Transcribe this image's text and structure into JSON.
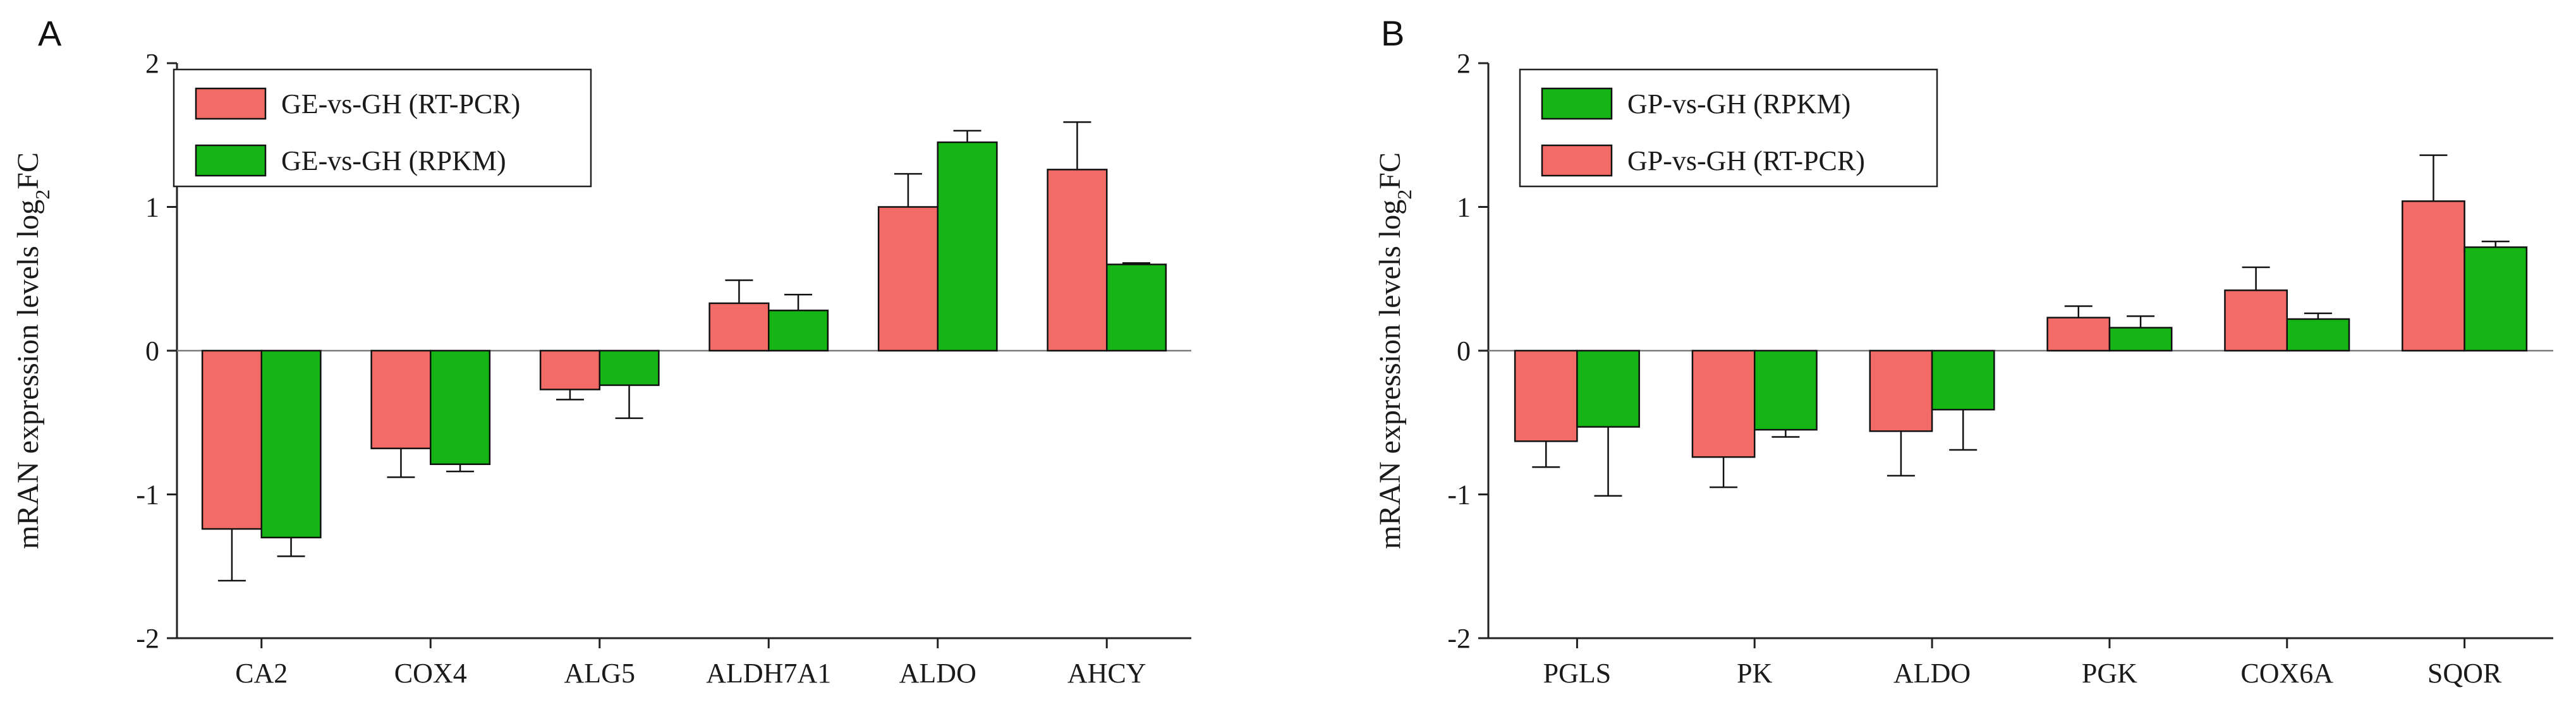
{
  "figure": {
    "colors": {
      "rt_pcr": "#f26b67",
      "rpkm": "#14b514",
      "axis": "#222222"
    }
  },
  "chart_data": [
    {
      "panel": "A",
      "type": "bar",
      "ylabel": "mRAN expression levels  log",
      "ylabel_sub": "2",
      "ylabel_suffix": "FC",
      "ylim": [
        -2,
        2
      ],
      "yticks": [
        -2,
        -1,
        0,
        1,
        2
      ],
      "ytick_labels": [
        "-2",
        "-1",
        "0",
        "1",
        "2"
      ],
      "categories": [
        "CA2",
        "COX4",
        "ALG5",
        "ALDH7A1",
        "ALDO",
        "AHCY"
      ],
      "legend_position": "top-left",
      "series": [
        {
          "name": "GE-vs-GH (RT-PCR)",
          "color": "#f26b67",
          "values": [
            -1.24,
            -0.68,
            -0.27,
            0.33,
            1.0,
            1.26
          ],
          "errors": [
            0.36,
            0.2,
            0.07,
            0.16,
            0.23,
            0.33
          ]
        },
        {
          "name": "GE-vs-GH (RPKM)",
          "color": "#14b514",
          "values": [
            -1.3,
            -0.79,
            -0.24,
            0.28,
            1.45,
            0.6
          ],
          "errors": [
            0.13,
            0.05,
            0.23,
            0.11,
            0.08,
            0.01
          ]
        }
      ]
    },
    {
      "panel": "B",
      "type": "bar",
      "ylabel": "mRAN expression levels  log",
      "ylabel_sub": "2",
      "ylabel_suffix": "FC",
      "ylim": [
        -2,
        2
      ],
      "yticks": [
        -2,
        -1,
        0,
        1,
        2
      ],
      "ytick_labels": [
        "-2",
        "-1",
        "0",
        "1",
        "2"
      ],
      "categories": [
        "PGLS",
        "PK",
        "ALDO",
        "PGK",
        "COX6A",
        "SQOR"
      ],
      "legend_position": "top-left",
      "legend_order": [
        1,
        0
      ],
      "series": [
        {
          "name": "GP-vs-GH (RT-PCR)",
          "color": "#f26b67",
          "values": [
            -0.63,
            -0.74,
            -0.56,
            0.23,
            0.42,
            1.04
          ],
          "errors": [
            0.18,
            0.21,
            0.31,
            0.08,
            0.16,
            0.32
          ]
        },
        {
          "name": "GP-vs-GH (RPKM)",
          "color": "#14b514",
          "values": [
            -0.53,
            -0.55,
            -0.41,
            0.16,
            0.22,
            0.72
          ],
          "errors": [
            0.48,
            0.05,
            0.28,
            0.08,
            0.04,
            0.04
          ]
        }
      ]
    }
  ]
}
